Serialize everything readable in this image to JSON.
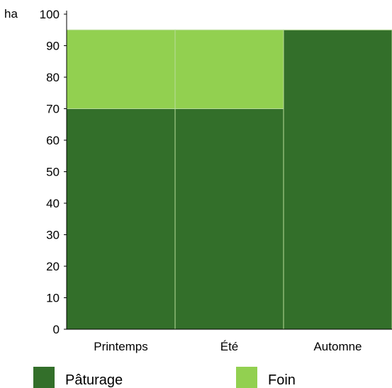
{
  "chart_data": {
    "type": "bar",
    "stacked": true,
    "unit": "ha",
    "categories": [
      "Printemps",
      "Été",
      "Automne"
    ],
    "series": [
      {
        "name": "Pâturage",
        "values": [
          70,
          70,
          95
        ],
        "color": "#336f2a"
      },
      {
        "name": "Foin",
        "values": [
          25,
          25,
          0
        ],
        "color": "#92d050"
      }
    ],
    "ylim": [
      0,
      100
    ],
    "yticks": [
      0,
      10,
      20,
      30,
      40,
      50,
      60,
      70,
      80,
      90,
      100
    ],
    "grid": false,
    "legend_position": "bottom"
  }
}
